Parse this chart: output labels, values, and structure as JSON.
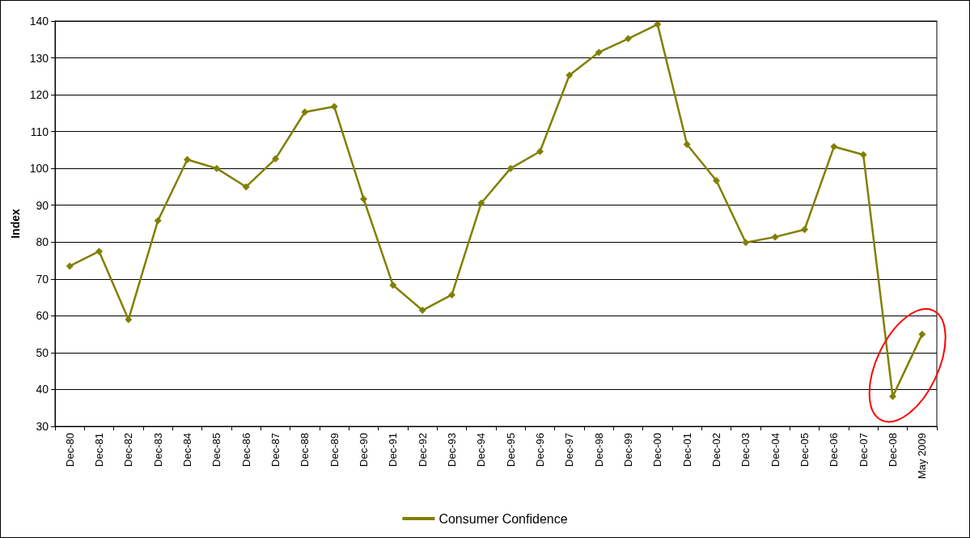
{
  "chart_data": {
    "type": "line",
    "ylabel": "Index",
    "categories": [
      "Dec-80",
      "Dec-81",
      "Dec-82",
      "Dec-83",
      "Dec-84",
      "Dec-85",
      "Dec-86",
      "Dec-87",
      "Dec-88",
      "Dec-89",
      "Dec-90",
      "Dec-91",
      "Dec-92",
      "Dec-93",
      "Dec-94",
      "Dec-95",
      "Dec-96",
      "Dec-97",
      "Dec-98",
      "Dec-99",
      "Dec-00",
      "Dec-01",
      "Dec-02",
      "Dec-03",
      "Dec-04",
      "Dec-05",
      "Dec-06",
      "Dec-07",
      "Dec-08",
      "May 2009"
    ],
    "series": [
      {
        "name": "Consumer Confidence",
        "color": "#808000",
        "values": [
          73.5,
          77.5,
          59,
          85.8,
          102.4,
          100,
          95,
          102.6,
          115.3,
          116.8,
          91.7,
          68.3,
          61.5,
          65.7,
          90.6,
          100,
          104.6,
          125.3,
          131.5,
          135.2,
          139.1,
          106.5,
          96.7,
          79.9,
          81.4,
          83.4,
          105.9,
          103.7,
          38.1,
          55
        ]
      }
    ],
    "ylim": [
      30,
      140
    ],
    "yticks": [
      30,
      40,
      50,
      60,
      70,
      80,
      90,
      100,
      110,
      120,
      130,
      140
    ],
    "grid": "y",
    "legend": "bottom",
    "marker": "diamond",
    "line_style": "solid"
  }
}
